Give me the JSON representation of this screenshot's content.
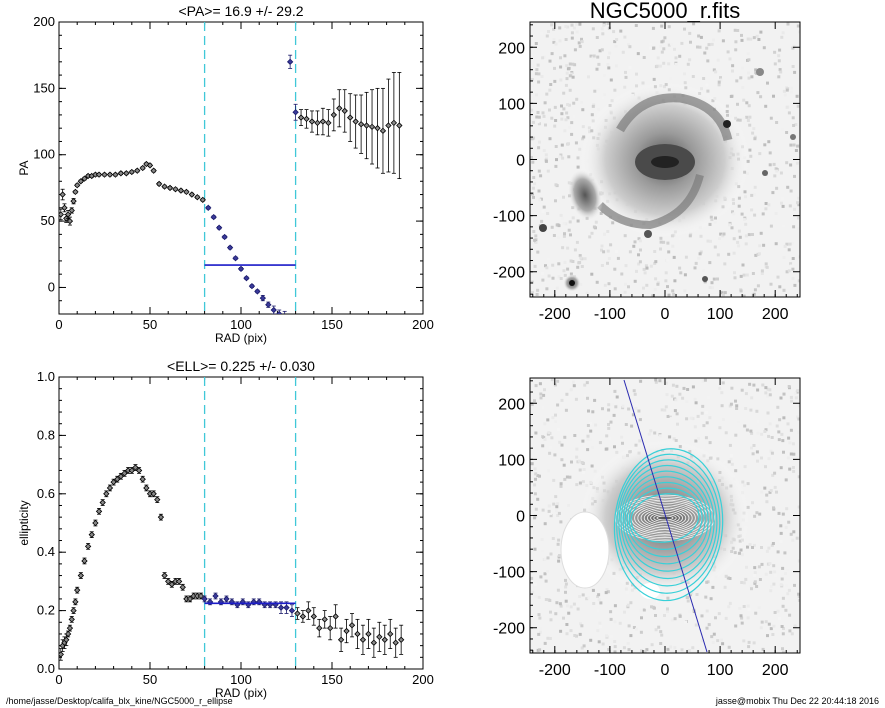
{
  "footer": {
    "left": "/home/jasse/Desktop/califa_blx_kine/NGC5000_r_ellipse",
    "right": "jasse@mobix  Thu Dec 22 20:44:18 2016"
  },
  "images": {
    "title": "NGC5000_r.fits",
    "ticks": [
      "-200",
      "-100",
      "0",
      "100",
      "200"
    ],
    "range": [
      -245,
      245
    ]
  },
  "chart_data": [
    {
      "type": "scatter",
      "title": "<PA>=  16.9 +/-  29.2",
      "xlabel": "RAD (pix)",
      "ylabel": "PA",
      "xlim": [
        0,
        200
      ],
      "ylim": [
        -20,
        200
      ],
      "xticks": [
        "0",
        "50",
        "100",
        "150",
        "200"
      ],
      "yticks": [
        "0",
        "50",
        "100",
        "150",
        "200"
      ],
      "vlines": [
        80,
        130
      ],
      "mean_line": {
        "x": [
          80,
          130
        ],
        "y": 16.9
      },
      "x": [
        1,
        2,
        3,
        4,
        5,
        6,
        7,
        8,
        9,
        10,
        12,
        14,
        16,
        18,
        20,
        22,
        25,
        28,
        31,
        34,
        37,
        40,
        43,
        46,
        48,
        50,
        52,
        55,
        58,
        61,
        64,
        67,
        70,
        73,
        76,
        79,
        82,
        85,
        88,
        91,
        94,
        97,
        100,
        103,
        106,
        109,
        112,
        115,
        118,
        121,
        124,
        127,
        130,
        133,
        136,
        139,
        142,
        145,
        148,
        151,
        154,
        157,
        160,
        163,
        166,
        169,
        172,
        175,
        178,
        181,
        184,
        187
      ],
      "y": [
        55,
        70,
        60,
        52,
        55,
        50,
        58,
        65,
        72,
        77,
        80,
        82,
        84,
        84,
        85,
        85,
        85,
        85,
        85,
        86,
        86,
        87,
        88,
        90,
        93,
        92,
        88,
        78,
        76,
        75,
        74,
        73,
        72,
        70,
        68,
        66,
        60,
        53,
        45,
        38,
        30,
        22,
        14,
        7,
        1,
        -3,
        -8,
        -13,
        -17,
        -20,
        -22,
        170,
        132,
        128,
        127,
        125,
        124,
        125,
        124,
        130,
        135,
        133,
        128,
        125,
        123,
        122,
        121,
        120,
        118,
        122,
        124,
        122
      ],
      "yerr": [
        4,
        4,
        3,
        3,
        3,
        3,
        2,
        2,
        1,
        1,
        1,
        1,
        1,
        1,
        1,
        1,
        1,
        1,
        1,
        1,
        1,
        1,
        1,
        1,
        1,
        1,
        1,
        1,
        1,
        1,
        1,
        1,
        1,
        1,
        1,
        1,
        1,
        1,
        1,
        1,
        1,
        1,
        1,
        1,
        1,
        1,
        2,
        2,
        3,
        3,
        4,
        5,
        6,
        6,
        7,
        8,
        9,
        10,
        10,
        12,
        14,
        16,
        18,
        20,
        22,
        25,
        28,
        30,
        32,
        35,
        38,
        40
      ]
    },
    {
      "type": "scatter",
      "title": "<ELL>= 0.225 +/-  0.030",
      "xlabel": "RAD (pix)",
      "ylabel": "ellipticity",
      "xlim": [
        0,
        200
      ],
      "ylim": [
        0,
        1.0
      ],
      "xticks": [
        "0",
        "50",
        "100",
        "150",
        "200"
      ],
      "yticks": [
        "0.0",
        "0.2",
        "0.4",
        "0.6",
        "0.8",
        "1.0"
      ],
      "vlines": [
        80,
        130
      ],
      "mean_line": {
        "x": [
          80,
          130
        ],
        "y": 0.225
      },
      "x": [
        1,
        2,
        3,
        4,
        5,
        6,
        7,
        8,
        9,
        10,
        12,
        14,
        16,
        18,
        20,
        22,
        24,
        26,
        28,
        30,
        32,
        34,
        36,
        38,
        40,
        42,
        44,
        46,
        48,
        50,
        52,
        54,
        56,
        58,
        60,
        62,
        64,
        66,
        68,
        70,
        72,
        74,
        76,
        78,
        80,
        83,
        86,
        89,
        92,
        95,
        98,
        101,
        104,
        107,
        110,
        113,
        116,
        119,
        122,
        125,
        128,
        131,
        134,
        137,
        140,
        143,
        146,
        149,
        152,
        155,
        158,
        161,
        164,
        167,
        170,
        173,
        176,
        179,
        182,
        185,
        188
      ],
      "y": [
        0.05,
        0.08,
        0.09,
        0.1,
        0.12,
        0.14,
        0.17,
        0.2,
        0.23,
        0.27,
        0.32,
        0.37,
        0.42,
        0.46,
        0.5,
        0.54,
        0.57,
        0.6,
        0.62,
        0.64,
        0.65,
        0.66,
        0.67,
        0.68,
        0.68,
        0.69,
        0.68,
        0.65,
        0.62,
        0.6,
        0.6,
        0.58,
        0.52,
        0.32,
        0.3,
        0.29,
        0.3,
        0.3,
        0.28,
        0.24,
        0.24,
        0.25,
        0.25,
        0.25,
        0.24,
        0.23,
        0.25,
        0.23,
        0.24,
        0.23,
        0.22,
        0.23,
        0.22,
        0.23,
        0.23,
        0.22,
        0.22,
        0.22,
        0.21,
        0.21,
        0.2,
        0.19,
        0.18,
        0.2,
        0.18,
        0.14,
        0.17,
        0.14,
        0.18,
        0.1,
        0.13,
        0.15,
        0.12,
        0.1,
        0.12,
        0.09,
        0.11,
        0.1,
        0.12,
        0.09,
        0.1
      ],
      "yerr": [
        0.02,
        0.02,
        0.02,
        0.02,
        0.01,
        0.01,
        0.01,
        0.01,
        0.01,
        0.01,
        0.01,
        0.01,
        0.01,
        0.01,
        0.01,
        0.01,
        0.01,
        0.01,
        0.01,
        0.01,
        0.01,
        0.01,
        0.01,
        0.01,
        0.01,
        0.01,
        0.01,
        0.01,
        0.01,
        0.01,
        0.01,
        0.01,
        0.01,
        0.01,
        0.01,
        0.01,
        0.01,
        0.01,
        0.01,
        0.01,
        0.01,
        0.01,
        0.01,
        0.01,
        0.01,
        0.01,
        0.01,
        0.01,
        0.01,
        0.01,
        0.01,
        0.01,
        0.01,
        0.01,
        0.01,
        0.01,
        0.01,
        0.01,
        0.02,
        0.02,
        0.02,
        0.02,
        0.02,
        0.03,
        0.03,
        0.03,
        0.03,
        0.04,
        0.04,
        0.04,
        0.04,
        0.04,
        0.05,
        0.05,
        0.05,
        0.05,
        0.05,
        0.05,
        0.05,
        0.05,
        0.05
      ]
    }
  ]
}
